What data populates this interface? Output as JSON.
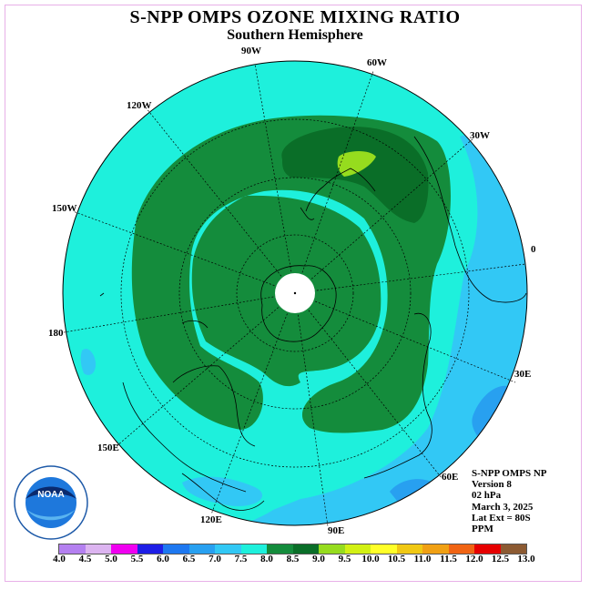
{
  "title": "S-NPP OMPS OZONE MIXING RATIO",
  "subtitle": "Southern Hemisphere",
  "longitude_labels": [
    "90W",
    "60W",
    "30W",
    "0",
    "30E",
    "60E",
    "90E",
    "120E",
    "150E",
    "180",
    "150W",
    "120W"
  ],
  "info": {
    "instrument": "S-NPP OMPS NP",
    "version": "Version 8",
    "level": "02 hPa",
    "date": "March 3, 2025",
    "lat_ext": "Lat Ext = 80S",
    "units": "PPM"
  },
  "logo_text": "NOAA",
  "colorbar": {
    "colors": [
      "#b480f0",
      "#dcb4f0",
      "#f000f0",
      "#1e1ee6",
      "#1e78f0",
      "#28a0f0",
      "#32c8f5",
      "#1ef0dc",
      "#148c3c",
      "#0a6e28",
      "#96dc1e",
      "#d2f014",
      "#ffff28",
      "#f0c814",
      "#f0a014",
      "#f06414",
      "#e60000",
      "#8c5a32"
    ],
    "ticks": [
      "4.0",
      "4.5",
      "5.0",
      "5.5",
      "6.0",
      "6.5",
      "7.0",
      "7.5",
      "8.0",
      "8.5",
      "9.0",
      "9.5",
      "10.0",
      "10.5",
      "11.0",
      "11.5",
      "12.0",
      "12.5",
      "13.0"
    ]
  },
  "field_colors": {
    "background": "#1ef0dc",
    "band_8_5": "#148c3c",
    "band_9_0": "#0a6e28",
    "band_9_5": "#96dc1e",
    "band_7_0": "#32c8f5",
    "band_6_5": "#28a0f0"
  }
}
